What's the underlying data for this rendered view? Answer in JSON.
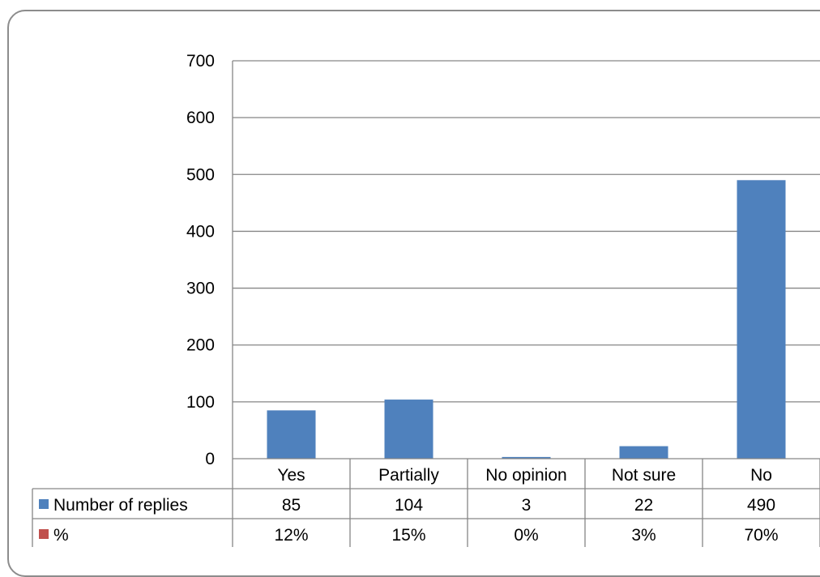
{
  "chart_data": {
    "type": "bar",
    "categories": [
      "Yes",
      "Partially",
      "No opinion",
      "Not sure",
      "No"
    ],
    "series": [
      {
        "name": "Number of replies",
        "values": [
          85,
          104,
          3,
          22,
          490
        ],
        "display": [
          "85",
          "104",
          "3",
          "22",
          "490"
        ],
        "color": "#4f81bd"
      },
      {
        "name": "%",
        "values": [
          12,
          15,
          0,
          3,
          70
        ],
        "display": [
          "12%",
          "15%",
          "0%",
          "3%",
          "70%"
        ],
        "color": "#c0504d"
      }
    ],
    "plotted_series": "Number of replies",
    "ylim": [
      0,
      700
    ],
    "yticks": [
      0,
      100,
      200,
      300,
      400,
      500,
      600,
      700
    ],
    "grid": true,
    "legend": "data-table"
  }
}
